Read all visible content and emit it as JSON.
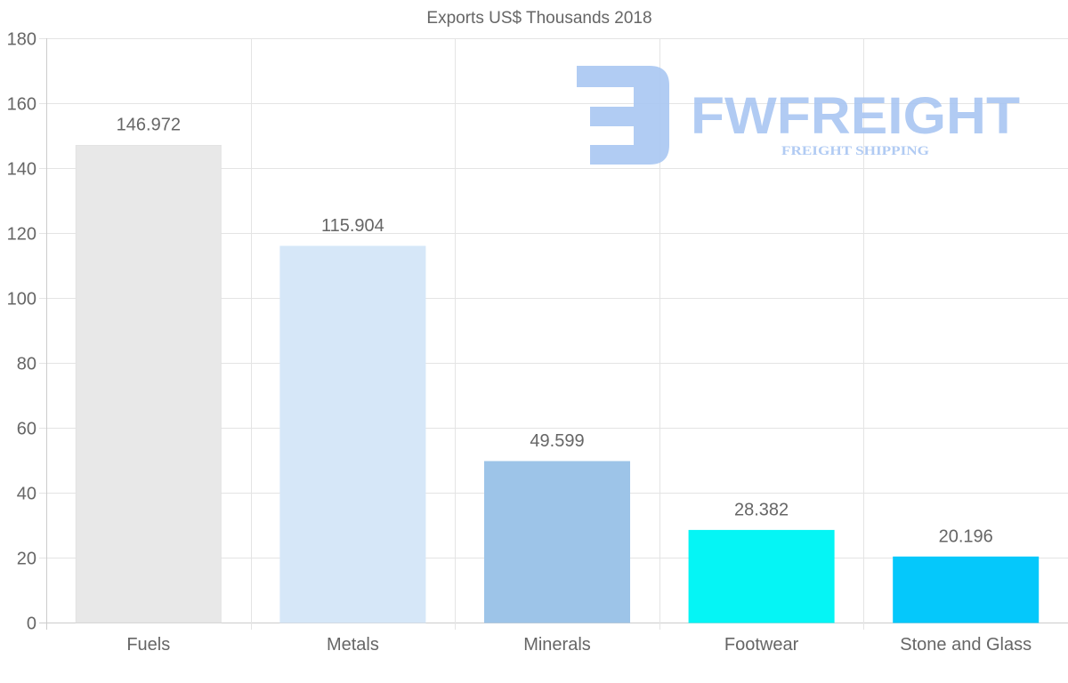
{
  "chart_data": {
    "type": "bar",
    "title": "Exports US$ Thousands 2018",
    "xlabel": "",
    "ylabel": "",
    "categories": [
      "Fuels",
      "Metals",
      "Minerals",
      "Footwear",
      "Stone and Glass"
    ],
    "values": [
      146.972,
      115.904,
      49.599,
      28.382,
      20.196
    ],
    "value_labels": [
      "146.972",
      "115.904",
      "49.599",
      "28.382",
      "20.196"
    ],
    "colors": [
      "#e8e8e8",
      "#d6e7f8",
      "#9dc4e8",
      "#05f5f5",
      "#05c8fb"
    ],
    "ylim": [
      0,
      180
    ],
    "yticks": [
      0,
      20,
      40,
      60,
      80,
      100,
      120,
      140,
      160,
      180
    ],
    "grid": true,
    "legend": "none"
  },
  "watermark": {
    "brand": "FWFREIGHT",
    "tagline": "FREIGHT SHIPPING",
    "color": "#a9c6f2"
  }
}
